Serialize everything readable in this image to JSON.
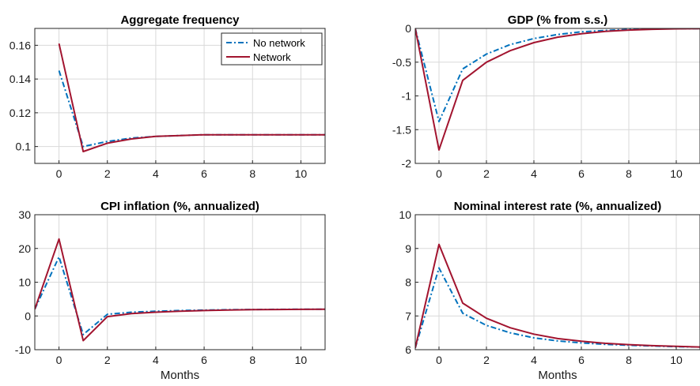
{
  "chart_data": [
    {
      "type": "line",
      "title": "Aggregate frequency",
      "xlabel": "",
      "ylabel": "",
      "xlim": [
        -1,
        11
      ],
      "ylim": [
        0.09,
        0.17
      ],
      "xticks": [
        0,
        2,
        4,
        6,
        8,
        10
      ],
      "yticks": [
        0.1,
        0.12,
        0.14,
        0.16
      ],
      "ytick_labels": [
        "0.1",
        "0.12",
        "0.14",
        "0.16"
      ],
      "grid": true,
      "legend": "top-right",
      "x": [
        -1,
        0,
        1,
        2,
        3,
        4,
        5,
        6,
        7,
        8,
        9,
        10,
        11
      ],
      "series": [
        {
          "name": "No network",
          "color": "#0072BD",
          "style": "dash-dot",
          "values": [
            null,
            0.145,
            0.1,
            0.103,
            0.105,
            0.106,
            0.1065,
            0.107,
            0.107,
            0.107,
            0.107,
            0.107,
            0.107
          ]
        },
        {
          "name": "Network",
          "color": "#A2142F",
          "style": "solid",
          "values": [
            null,
            0.161,
            0.097,
            0.102,
            0.1045,
            0.106,
            0.1065,
            0.107,
            0.107,
            0.107,
            0.107,
            0.107,
            0.107
          ]
        }
      ]
    },
    {
      "type": "line",
      "title": "GDP (% from s.s.)",
      "xlabel": "",
      "ylabel": "",
      "xlim": [
        -1,
        11
      ],
      "ylim": [
        -2,
        0
      ],
      "xticks": [
        0,
        2,
        4,
        6,
        8,
        10
      ],
      "yticks": [
        -2,
        -1.5,
        -1,
        -0.5,
        0
      ],
      "ytick_labels": [
        "-2",
        "-1.5",
        "-1",
        "-0.5",
        "0"
      ],
      "grid": true,
      "legend": "none",
      "x": [
        -1,
        0,
        1,
        2,
        3,
        4,
        5,
        6,
        7,
        8,
        9,
        10,
        11
      ],
      "series": [
        {
          "name": "No network",
          "color": "#0072BD",
          "style": "dash-dot",
          "values": [
            0,
            -1.38,
            -0.6,
            -0.38,
            -0.24,
            -0.15,
            -0.09,
            -0.05,
            -0.03,
            -0.015,
            -0.008,
            -0.004,
            -0.002
          ]
        },
        {
          "name": "Network",
          "color": "#A2142F",
          "style": "solid",
          "values": [
            0,
            -1.8,
            -0.77,
            -0.5,
            -0.33,
            -0.21,
            -0.13,
            -0.08,
            -0.045,
            -0.025,
            -0.013,
            -0.006,
            -0.003
          ]
        }
      ]
    },
    {
      "type": "line",
      "title": "CPI inflation (%, annualized)",
      "xlabel": "Months",
      "ylabel": "",
      "xlim": [
        -1,
        11
      ],
      "ylim": [
        -10,
        30
      ],
      "xticks": [
        0,
        2,
        4,
        6,
        8,
        10
      ],
      "yticks": [
        -10,
        0,
        10,
        20,
        30
      ],
      "ytick_labels": [
        "-10",
        "0",
        "10",
        "20",
        "30"
      ],
      "grid": true,
      "legend": "none",
      "x": [
        -1,
        0,
        1,
        2,
        3,
        4,
        5,
        6,
        7,
        8,
        9,
        10,
        11
      ],
      "series": [
        {
          "name": "No network",
          "color": "#0072BD",
          "style": "dash-dot",
          "values": [
            2,
            17.5,
            -5.5,
            0.5,
            1.1,
            1.4,
            1.6,
            1.75,
            1.85,
            1.9,
            1.95,
            2,
            2
          ]
        },
        {
          "name": "Network",
          "color": "#A2142F",
          "style": "solid",
          "values": [
            2,
            22.8,
            -7.3,
            -0.2,
            0.7,
            1.1,
            1.4,
            1.6,
            1.75,
            1.85,
            1.9,
            1.95,
            2
          ]
        }
      ]
    },
    {
      "type": "line",
      "title": "Nominal interest rate (%, annualized)",
      "xlabel": "Months",
      "ylabel": "",
      "xlim": [
        -1,
        11
      ],
      "ylim": [
        6,
        10
      ],
      "xticks": [
        0,
        2,
        4,
        6,
        8,
        10
      ],
      "yticks": [
        6,
        7,
        8,
        9,
        10
      ],
      "ytick_labels": [
        "6",
        "7",
        "8",
        "9",
        "10"
      ],
      "grid": true,
      "legend": "none",
      "x": [
        -1,
        0,
        1,
        2,
        3,
        4,
        5,
        6,
        7,
        8,
        9,
        10,
        11
      ],
      "series": [
        {
          "name": "No network",
          "color": "#0072BD",
          "style": "dash-dot",
          "values": [
            6.05,
            8.42,
            7.08,
            6.72,
            6.5,
            6.35,
            6.26,
            6.2,
            6.16,
            6.13,
            6.11,
            6.09,
            6.08
          ]
        },
        {
          "name": "Network",
          "color": "#A2142F",
          "style": "solid",
          "values": [
            6.05,
            9.12,
            7.38,
            6.93,
            6.65,
            6.46,
            6.33,
            6.25,
            6.19,
            6.15,
            6.12,
            6.1,
            6.08
          ]
        }
      ]
    }
  ]
}
